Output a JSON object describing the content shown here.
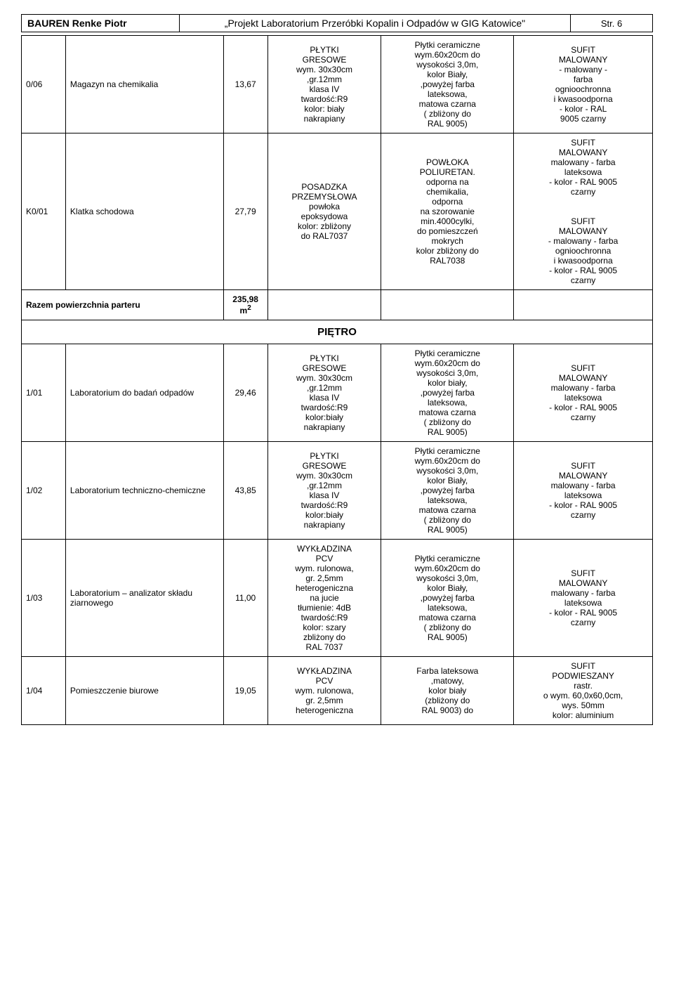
{
  "header": {
    "left": "BAUREN Renke Piotr",
    "center": "„Projekt Laboratorium Przeróbki Kopalin i Odpadów w GIG Katowice\"",
    "right": "Str. 6"
  },
  "rows": [
    {
      "code": "0/06",
      "name": "Magazyn na chemikalia",
      "qty": "13,67",
      "floor": "PŁYTKI\nGRESOWE\nwym. 30x30cm\n,gr.12mm\nklasa IV\ntwardość:R9\nkolor: biały\nnakrapiany",
      "wall": "Płytki ceramiczne\nwym.60x20cm do\nwysokości 3,0m,\nkolor Biały,\n,powyżej farba\nlateksowa,\nmatowa czarna\n( zbliżony do\nRAL 9005)",
      "ceil": "SUFIT\nMALOWANY\n- malowany -\nfarba\nognioochronna\ni kwasoodporna\n- kolor - RAL\n9005 czarny"
    },
    {
      "code": "K0/01",
      "name": "Klatka schodowa",
      "qty": "27,79",
      "floor": "POSADZKA\nPRZEMYSŁOWA\npowłoka\nepoksydowa\nkolor: zbliżony\ndo RAL7037",
      "wall": "POWŁOKA\nPOLIURETAN.\nodporna na\nchemikalia,\nodporna\nna szorowanie\nmin.4000cylki,\ndo pomieszczeń\nmokrych\nkolor zbliżony do\nRAL7038",
      "ceil": "SUFIT\nMALOWANY\nmalowany - farba\nlateksowa\n- kolor - RAL 9005\nczarny\n\nSUFIT\nMALOWANY\n- malowany - farba\nognioochronna\ni kwasoodporna\n- kolor - RAL 9005\nczarny"
    }
  ],
  "sum": {
    "label": "Razem powierzchnia parteru",
    "value": "235,98 m",
    "unit_sup": "2"
  },
  "section_title": "PIĘTRO",
  "rows2": [
    {
      "code": "1/01",
      "name": "Laboratorium do badań odpadów",
      "qty": "29,46",
      "floor": "PŁYTKI\nGRESOWE\nwym. 30x30cm\n,gr.12mm\nklasa IV\ntwardość:R9\nkolor:biały\nnakrapiany",
      "wall": "Płytki ceramiczne\nwym.60x20cm do\nwysokości 3,0m,\nkolor biały,\n,powyżej farba\nlateksowa,\nmatowa czarna\n( zbliżony do\nRAL 9005)",
      "ceil": "SUFIT\nMALOWANY\nmalowany - farba\nlateksowa\n- kolor - RAL 9005\nczarny"
    },
    {
      "code": "1/02",
      "name": "Laboratorium techniczno-chemiczne",
      "qty": "43,85",
      "floor": "PŁYTKI\nGRESOWE\nwym. 30x30cm\n,gr.12mm\nklasa IV\ntwardość:R9\nkolor:biały\nnakrapiany",
      "wall": "Płytki ceramiczne\nwym.60x20cm do\nwysokości 3,0m,\nkolor Biały,\n,powyżej farba\nlateksowa,\nmatowa czarna\n( zbliżony do\nRAL 9005)",
      "ceil": "SUFIT\nMALOWANY\nmalowany - farba\nlateksowa\n- kolor - RAL 9005\nczarny"
    },
    {
      "code": "1/03",
      "name": "Laboratorium – analizator składu ziarnowego",
      "qty": "11,00",
      "floor": "WYKŁADZINA\nPCV\nwym. rulonowa,\ngr. 2,5mm\nheterogeniczna\nna jucie\ntłumienie: 4dB\ntwardość:R9\nkolor: szary\nzbliżony do\nRAL 7037",
      "wall": "Płytki ceramiczne\nwym.60x20cm do\nwysokości 3,0m,\nkolor Biały,\n,powyżej farba\nlateksowa,\nmatowa czarna\n( zbliżony do\nRAL 9005)",
      "ceil": "SUFIT\nMALOWANY\nmalowany - farba\nlateksowa\n- kolor - RAL 9005\nczarny"
    },
    {
      "code": "1/04",
      "name": "Pomieszczenie biurowe",
      "qty": "19,05",
      "floor": "WYKŁADZINA\nPCV\nwym. rulonowa,\ngr. 2,5mm\nheterogeniczna",
      "wall": "Farba lateksowa\n,matowy,\nkolor biały\n(zbliżony do\nRAL 9003) do",
      "ceil": "SUFIT\nPODWIESZANY\nrastr.\no wym. 60,0x60,0cm,\nwys. 50mm\nkolor: aluminium"
    }
  ],
  "colors": {
    "border": "#000000",
    "bg": "#ffffff",
    "text": "#000000"
  },
  "fonts": {
    "body_family": "Arial, sans-serif",
    "cell_size_pt": 12,
    "header_size_pt": 14
  }
}
